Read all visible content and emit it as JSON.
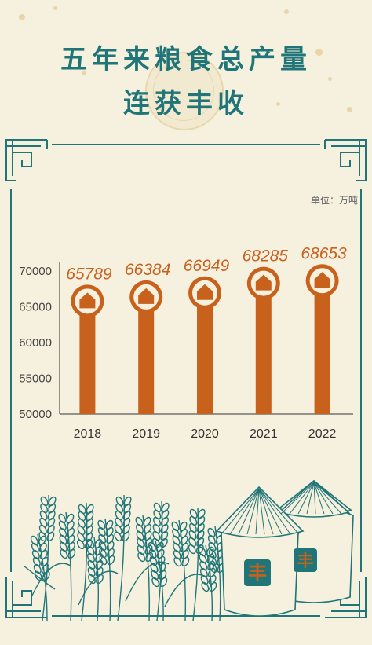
{
  "header": {
    "title_line1": "五年来粮食总产量",
    "title_line2": "连获丰收"
  },
  "unit_label": "单位：万吨",
  "colors": {
    "accent": "#1f7577",
    "bar": "#c8611c",
    "background": "#f6f0df"
  },
  "chart_data": {
    "type": "bar",
    "title": "五年来粮食总产量连获丰收",
    "categories": [
      "2018",
      "2019",
      "2020",
      "2021",
      "2022"
    ],
    "values": [
      65789,
      66384,
      66949,
      68285,
      68653
    ],
    "value_labels": [
      "65789",
      "66384",
      "66949",
      "68285",
      "68653"
    ],
    "ylim": [
      50000,
      70000
    ],
    "yticks": [
      "50000",
      "55000",
      "60000",
      "65000",
      "70000"
    ],
    "ylabel": "",
    "xlabel": "",
    "grid": false,
    "legend": "none"
  },
  "illustration": {
    "granary_char": "丰",
    "granary_icon": "granary-icon",
    "wheat_icon": "wheat-icon"
  }
}
